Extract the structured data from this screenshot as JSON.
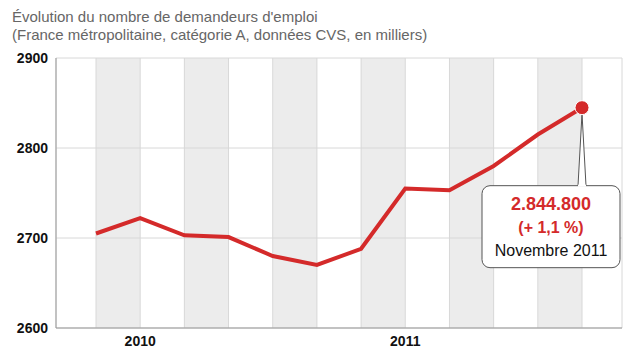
{
  "chart_data": {
    "type": "line",
    "title": "Évolution du nombre de demandeurs d'emploi",
    "subtitle": "(France métropolitaine, catégorie A, données CVS, en milliers)",
    "categories": [
      null,
      "2010",
      null,
      null,
      null,
      null,
      null,
      "2011",
      null,
      null,
      null,
      null
    ],
    "values": [
      2705,
      2722,
      2703,
      2701,
      2680,
      2670,
      2688,
      2755,
      2753,
      2780,
      2815,
      2844.8
    ],
    "color": "#d42a2a",
    "ylim": [
      2600,
      2900
    ],
    "yticks": [
      2600,
      2700,
      2800,
      2900
    ],
    "grid": true,
    "annotation": [
      "2.844.800",
      "(+ 1,1 %)",
      "Novembre 2011"
    ]
  }
}
